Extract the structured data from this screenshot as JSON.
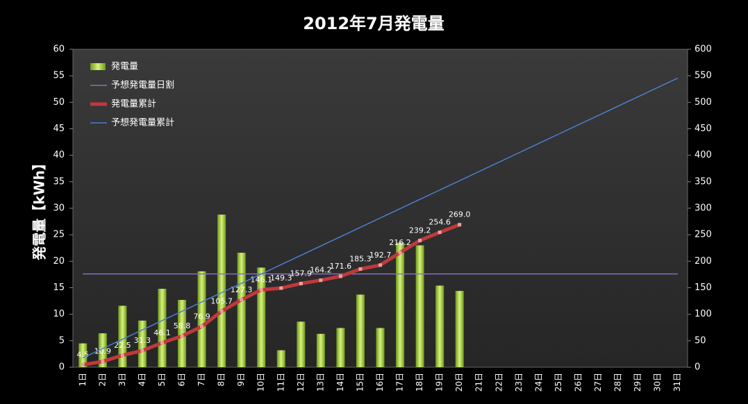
{
  "chart_data": {
    "type": "combo",
    "title": "2012年7月発電量",
    "y_label": "発電量【kWh】",
    "categories": [
      "1日",
      "2日",
      "3日",
      "4日",
      "5日",
      "6日",
      "7日",
      "8日",
      "9日",
      "10日",
      "11日",
      "12日",
      "13日",
      "14日",
      "15日",
      "16日",
      "17日",
      "18日",
      "19日",
      "20日",
      "21日",
      "22日",
      "23日",
      "24日",
      "25日",
      "26日",
      "27日",
      "28日",
      "29日",
      "30日",
      "31日"
    ],
    "ylim": [
      0,
      60
    ],
    "yticks": [
      0,
      5,
      10,
      15,
      20,
      25,
      30,
      35,
      40,
      45,
      50,
      55,
      60
    ],
    "y2lim": [
      0,
      600
    ],
    "y2ticks": [
      0,
      50,
      100,
      150,
      200,
      250,
      300,
      350,
      400,
      450,
      500,
      550,
      600
    ],
    "grid": false,
    "legend": "upper left",
    "series": [
      {
        "name": "発電量",
        "type": "bar",
        "color": "#9ccc2e",
        "values": [
          4.5,
          6.4,
          11.6,
          8.8,
          14.8,
          12.7,
          18.1,
          28.8,
          21.6,
          18.8,
          3.2,
          8.6,
          6.3,
          7.4,
          13.7,
          7.4,
          23.5,
          23.0,
          15.4,
          14.4,
          null,
          null,
          null,
          null,
          null,
          null,
          null,
          null,
          null,
          null,
          null
        ]
      },
      {
        "name": "予想発電量日割",
        "type": "line",
        "color": "#8a6fc0",
        "values": [
          17.6,
          17.6,
          17.6,
          17.6,
          17.6,
          17.6,
          17.6,
          17.6,
          17.6,
          17.6,
          17.6,
          17.6,
          17.6,
          17.6,
          17.6,
          17.6,
          17.6,
          17.6,
          17.6,
          17.6,
          17.6,
          17.6,
          17.6,
          17.6,
          17.6,
          17.6,
          17.6,
          17.6,
          17.6,
          17.6,
          17.6
        ]
      },
      {
        "name": "発電量累計",
        "type": "line-marker",
        "color": "#c0393b",
        "axis": "y2",
        "values": [
          4.5,
          10.9,
          22.5,
          31.3,
          46.1,
          58.8,
          76.9,
          105.7,
          127.3,
          146.1,
          149.3,
          157.9,
          164.2,
          171.6,
          185.3,
          192.7,
          216.2,
          239.2,
          254.6,
          269.0,
          null,
          null,
          null,
          null,
          null,
          null,
          null,
          null,
          null,
          null,
          null
        ],
        "value_labels": [
          "4.5",
          "10.9",
          "22.5",
          "31.3",
          "46.1",
          "58.8",
          "76.9",
          "105.7",
          "127.3",
          "146.1",
          "149.3",
          "157.9",
          "164.2",
          "171.6",
          "185.3",
          "192.7",
          "216.2",
          "239.2",
          "254.6",
          "269.0",
          null,
          null,
          null,
          null,
          null,
          null,
          null,
          null,
          null,
          null,
          null
        ]
      },
      {
        "name": "予想発電量累計",
        "type": "line",
        "color": "#4a7fd0",
        "axis": "y2",
        "values": [
          17.6,
          35.2,
          52.8,
          70.4,
          88.0,
          105.6,
          123.2,
          140.8,
          158.4,
          176.0,
          193.6,
          211.2,
          228.8,
          246.4,
          264.0,
          281.6,
          299.2,
          316.8,
          334.4,
          352.0,
          369.6,
          387.2,
          404.8,
          422.4,
          440.0,
          457.6,
          475.2,
          492.8,
          510.4,
          528.0,
          545.6
        ]
      }
    ]
  }
}
